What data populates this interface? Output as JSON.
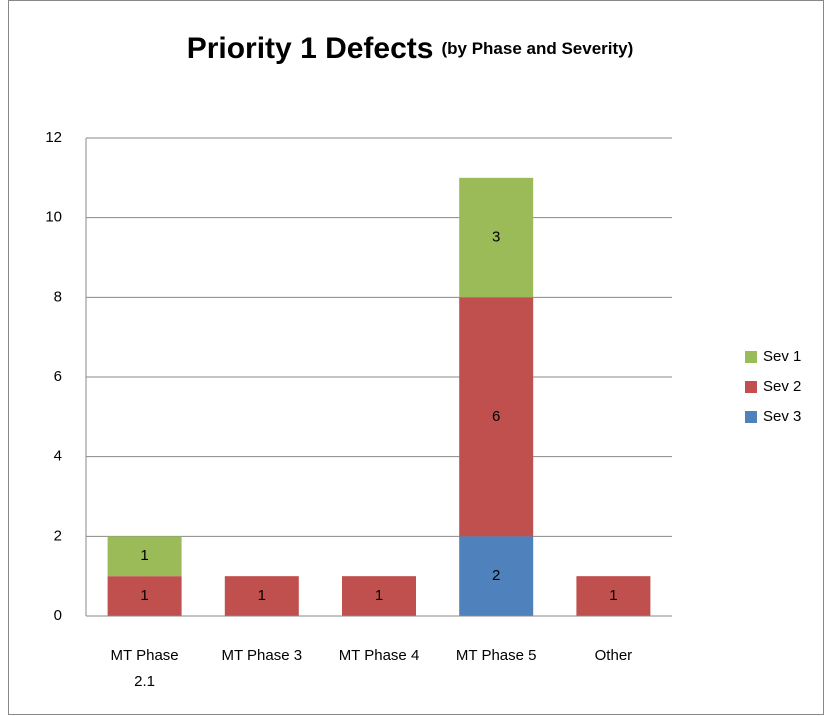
{
  "chart_data": {
    "type": "stacked_bar",
    "title": "Priority 1 Defects",
    "subtitle": "(by Phase and Severity)",
    "categories": [
      "MT Phase 2.1",
      "MT Phase 3",
      "MT Phase 4",
      "MT Phase 5",
      "Other"
    ],
    "series": [
      {
        "name": "Sev 1",
        "color": "#9bbb59",
        "values": [
          1,
          0,
          0,
          3,
          0
        ]
      },
      {
        "name": "Sev 2",
        "color": "#c0504d",
        "values": [
          1,
          1,
          1,
          6,
          1
        ]
      },
      {
        "name": "Sev 3",
        "color": "#4f81bd",
        "values": [
          0,
          0,
          0,
          2,
          0
        ]
      }
    ],
    "stack_order": [
      "Sev 3",
      "Sev 2",
      "Sev 1"
    ],
    "ylim": [
      0,
      12
    ],
    "yticks": [
      0,
      2,
      4,
      6,
      8,
      10,
      12
    ],
    "grid": true,
    "legend": "right"
  }
}
